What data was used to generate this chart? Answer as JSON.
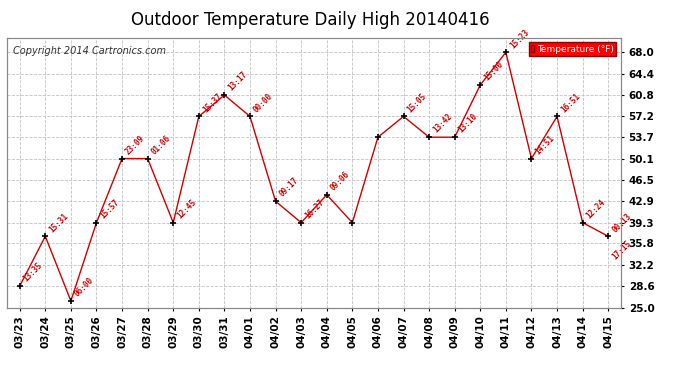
{
  "title": "Outdoor Temperature Daily High 20140416",
  "copyright": "Copyright 2014 Cartronics.com",
  "legend_label": "Temperature (°F)",
  "dates": [
    "03/23",
    "03/24",
    "03/25",
    "03/26",
    "03/27",
    "03/28",
    "03/29",
    "03/30",
    "03/31",
    "04/01",
    "04/02",
    "04/03",
    "04/04",
    "04/05",
    "04/06",
    "04/07",
    "04/08",
    "04/09",
    "04/10",
    "04/11",
    "04/12",
    "04/13",
    "04/14",
    "04/15"
  ],
  "values": [
    28.6,
    37.0,
    26.1,
    39.3,
    50.1,
    50.1,
    39.3,
    57.2,
    60.8,
    57.2,
    42.9,
    39.3,
    44.0,
    39.3,
    53.7,
    57.2,
    53.7,
    53.7,
    62.5,
    68.0,
    50.1,
    57.2,
    39.3,
    37.0
  ],
  "time_labels": [
    "13:35",
    "15:31",
    "06:00",
    "15:57",
    "23:09",
    "01:06",
    "12:45",
    "15:37",
    "13:17",
    "00:00",
    "09:17",
    "16:27",
    "09:06",
    "",
    "",
    "15:05",
    "13:42",
    "13:10",
    "15:00",
    "15:23",
    "14:51",
    "16:51",
    "12:24",
    "00:13"
  ],
  "time_label2": [
    "",
    "",
    "",
    "",
    "",
    "",
    "",
    "",
    "",
    "",
    "",
    "",
    "",
    "",
    "",
    "",
    "",
    "",
    "",
    "",
    "",
    "",
    "",
    "17:15"
  ],
  "yticks": [
    25.0,
    28.6,
    32.2,
    35.8,
    39.3,
    42.9,
    46.5,
    50.1,
    53.7,
    57.2,
    60.8,
    64.4,
    68.0
  ],
  "line_color": "#cc0000",
  "marker_color": "#000000",
  "bg_color": "#ffffff",
  "grid_color": "#bbbbbb",
  "title_fontsize": 12,
  "tick_fontsize": 7.5,
  "label_fontsize": 5.5,
  "copyright_fontsize": 7,
  "ylim_min": 25.0,
  "ylim_max": 70.5
}
